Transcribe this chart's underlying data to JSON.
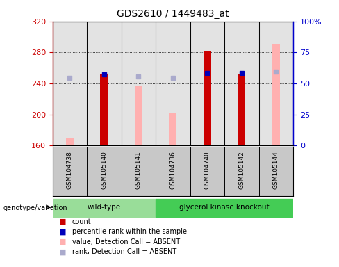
{
  "title": "GDS2610 / 1449483_at",
  "samples": [
    "GSM104738",
    "GSM105140",
    "GSM105141",
    "GSM104736",
    "GSM104740",
    "GSM105142",
    "GSM105144"
  ],
  "ylim_left": [
    160,
    320
  ],
  "ylim_right": [
    0,
    100
  ],
  "yticks_left": [
    160,
    200,
    240,
    280,
    320
  ],
  "yticks_right": [
    0,
    25,
    50,
    75,
    100
  ],
  "yticklabels_right": [
    "0",
    "25",
    "50",
    "75",
    "100%"
  ],
  "red_bars": [
    null,
    252,
    null,
    null,
    281,
    252,
    null
  ],
  "pink_bars": [
    170,
    null,
    236,
    202,
    null,
    null,
    290
  ],
  "blue_squares_left_val": [
    null,
    252,
    null,
    null,
    253,
    253,
    null
  ],
  "lavender_squares_left_val": [
    247,
    null,
    249,
    247,
    null,
    null,
    255
  ],
  "red_color": "#cc0000",
  "pink_color": "#ffb0b0",
  "blue_color": "#0000bb",
  "lavender_color": "#aaaacc",
  "background_plot": "#ffffff",
  "background_sample": "#c8c8c8",
  "wt_color": "#99dd99",
  "ko_color": "#44cc55",
  "axis_left_color": "#cc0000",
  "axis_right_color": "#0000cc",
  "title_fontsize": 10,
  "wt_label": "wild-type",
  "ko_label": "glycerol kinase knockout",
  "legend_items": [
    {
      "label": "count",
      "color": "#cc0000"
    },
    {
      "label": "percentile rank within the sample",
      "color": "#0000bb"
    },
    {
      "label": "value, Detection Call = ABSENT",
      "color": "#ffb0b0"
    },
    {
      "label": "rank, Detection Call = ABSENT",
      "color": "#aaaacc"
    }
  ],
  "genotype_label": "genotype/variation"
}
